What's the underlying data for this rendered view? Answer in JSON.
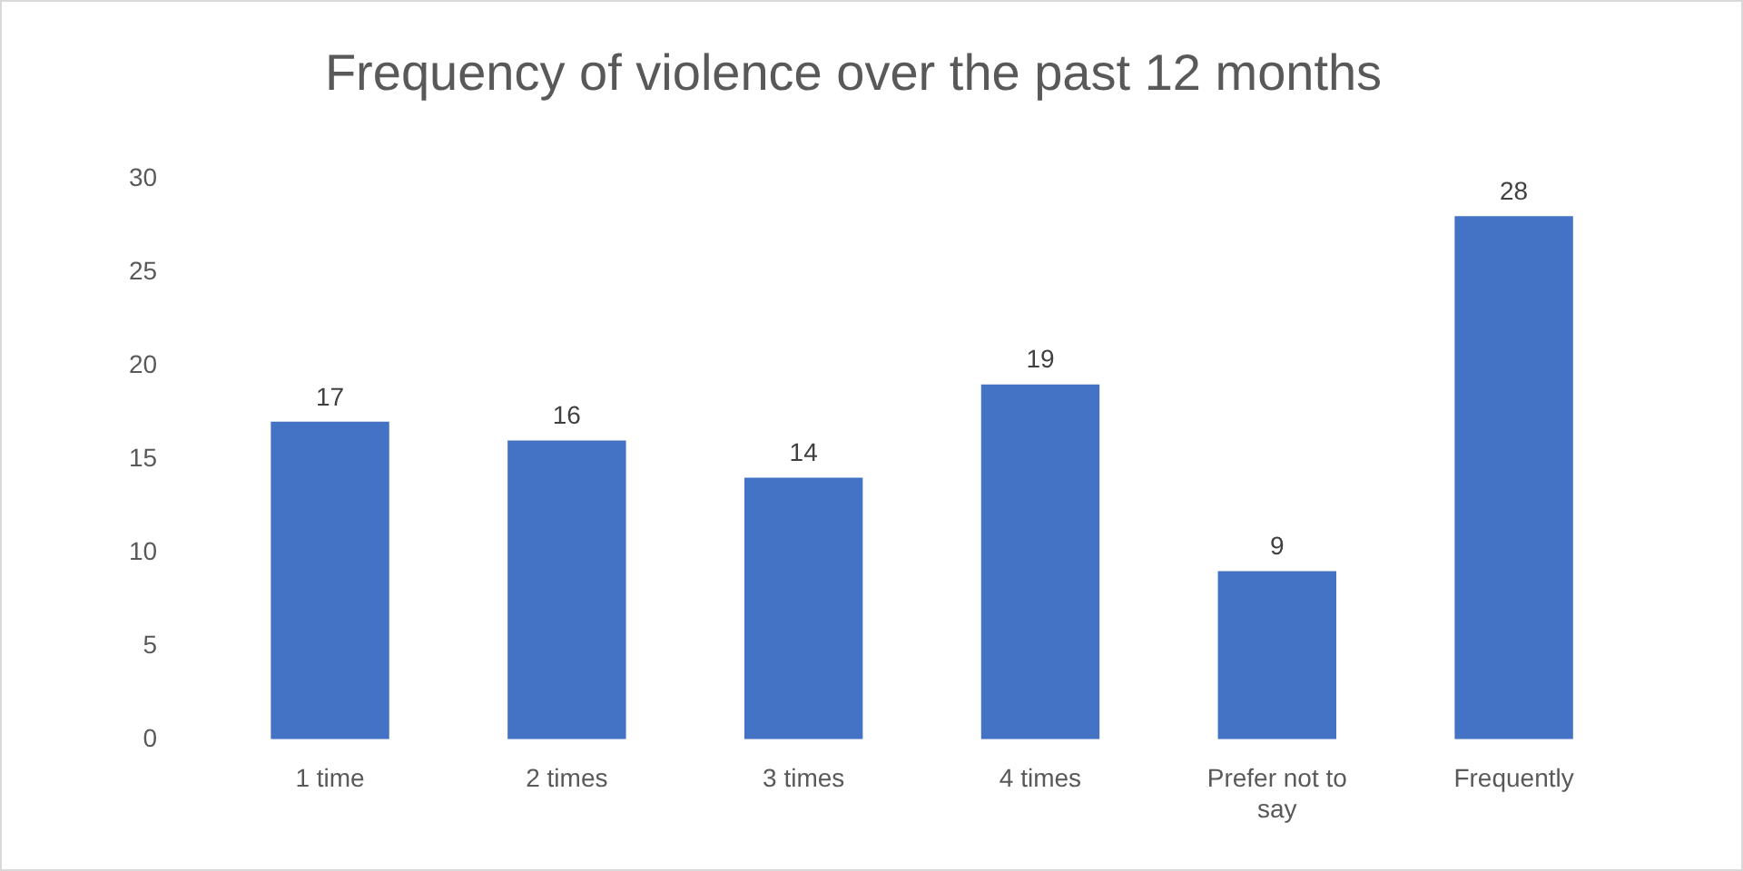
{
  "chart_data": {
    "type": "bar",
    "title": "Frequency of violence over the past 12 months",
    "categories": [
      "1 time",
      "2 times",
      "3 times",
      "4 times",
      "Prefer not to say",
      "Frequently"
    ],
    "values": [
      17,
      16,
      14,
      19,
      9,
      28
    ],
    "color": "#4472c4",
    "ylim": [
      0,
      30
    ],
    "yticks": [
      0,
      5,
      10,
      15,
      20,
      25,
      30
    ],
    "grid": false,
    "legend": false,
    "data_labels": true
  }
}
